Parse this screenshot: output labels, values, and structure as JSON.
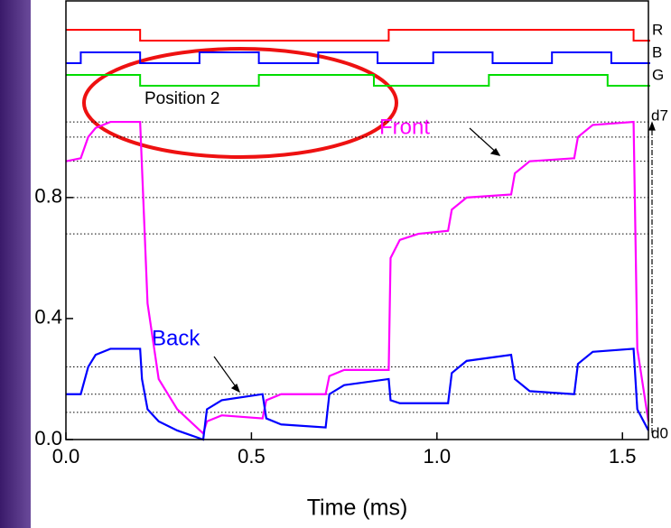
{
  "chart_data": {
    "type": "line",
    "x_label": "Time (ms)",
    "xlim": [
      0,
      1.57
    ],
    "xticks": [
      {
        "value": 0,
        "label": "0.0"
      },
      0.5,
      {
        "value": 1,
        "label": "1.0"
      },
      1.5
    ],
    "ylim": [
      0,
      1.45
    ],
    "yticks": [
      {
        "value": 0,
        "label": "0.0"
      },
      0.4,
      0.8
    ],
    "series": [
      {
        "name": "Front",
        "color": "#ff00ff",
        "x": [
          0,
          0.04,
          0.06,
          0.08,
          0.12,
          0.2,
          0.205,
          0.22,
          0.25,
          0.3,
          0.37,
          0.38,
          0.42,
          0.53,
          0.54,
          0.58,
          0.7,
          0.71,
          0.75,
          0.87,
          0.875,
          0.9,
          0.95,
          1.03,
          1.04,
          1.08,
          1.2,
          1.21,
          1.25,
          1.37,
          1.38,
          1.42,
          1.53,
          1.54,
          1.57
        ],
        "values": [
          0.92,
          0.93,
          1.0,
          1.03,
          1.05,
          1.05,
          0.9,
          0.45,
          0.2,
          0.1,
          0.02,
          0.06,
          0.08,
          0.07,
          0.13,
          0.15,
          0.15,
          0.21,
          0.23,
          0.23,
          0.6,
          0.66,
          0.68,
          0.69,
          0.76,
          0.8,
          0.81,
          0.88,
          0.92,
          0.93,
          1.0,
          1.04,
          1.05,
          0.3,
          0.06
        ]
      },
      {
        "name": "Back",
        "color": "#0000ff",
        "x": [
          0,
          0.04,
          0.06,
          0.08,
          0.12,
          0.2,
          0.205,
          0.22,
          0.25,
          0.3,
          0.37,
          0.38,
          0.42,
          0.53,
          0.54,
          0.58,
          0.7,
          0.71,
          0.75,
          0.87,
          0.875,
          0.9,
          0.95,
          1.03,
          1.04,
          1.08,
          1.2,
          1.21,
          1.25,
          1.37,
          1.38,
          1.42,
          1.53,
          1.54,
          1.57
        ],
        "values": [
          0.15,
          0.15,
          0.24,
          0.28,
          0.3,
          0.3,
          0.2,
          0.1,
          0.06,
          0.03,
          0.0,
          0.1,
          0.13,
          0.15,
          0.07,
          0.05,
          0.04,
          0.15,
          0.18,
          0.2,
          0.13,
          0.12,
          0.12,
          0.12,
          0.22,
          0.26,
          0.28,
          0.2,
          0.16,
          0.15,
          0.25,
          0.29,
          0.3,
          0.1,
          0.03
        ]
      }
    ],
    "signals": [
      {
        "name": "R",
        "color": "#ff0000",
        "x": [
          0,
          0.2,
          0.87,
          1.53,
          1.57
        ],
        "values": [
          1,
          0,
          1,
          0,
          0
        ]
      },
      {
        "name": "B",
        "color": "#0000ff",
        "x": [
          0,
          0.04,
          0.2,
          0.36,
          0.52,
          0.68,
          0.84,
          0.99,
          1.15,
          1.31,
          1.47,
          1.57
        ],
        "values": [
          0,
          1,
          0,
          1,
          0,
          1,
          0,
          1,
          0,
          1,
          0,
          0
        ]
      },
      {
        "name": "G",
        "color": "#00dd00",
        "x": [
          0,
          0.2,
          0.52,
          0.83,
          1.14,
          1.46,
          1.57
        ],
        "values": [
          1,
          0,
          1,
          0,
          1,
          0,
          0
        ]
      }
    ],
    "reference_lines": [
      1.05,
      1.0,
      0.92,
      0.8,
      0.68,
      0.24,
      0.15,
      0.09
    ],
    "level_labels": [
      {
        "text": "d7",
        "y": 1.05
      },
      {
        "text": "d0",
        "y": 0.0
      }
    ],
    "annotations": [
      "Position 2",
      "Front",
      "Back"
    ]
  }
}
